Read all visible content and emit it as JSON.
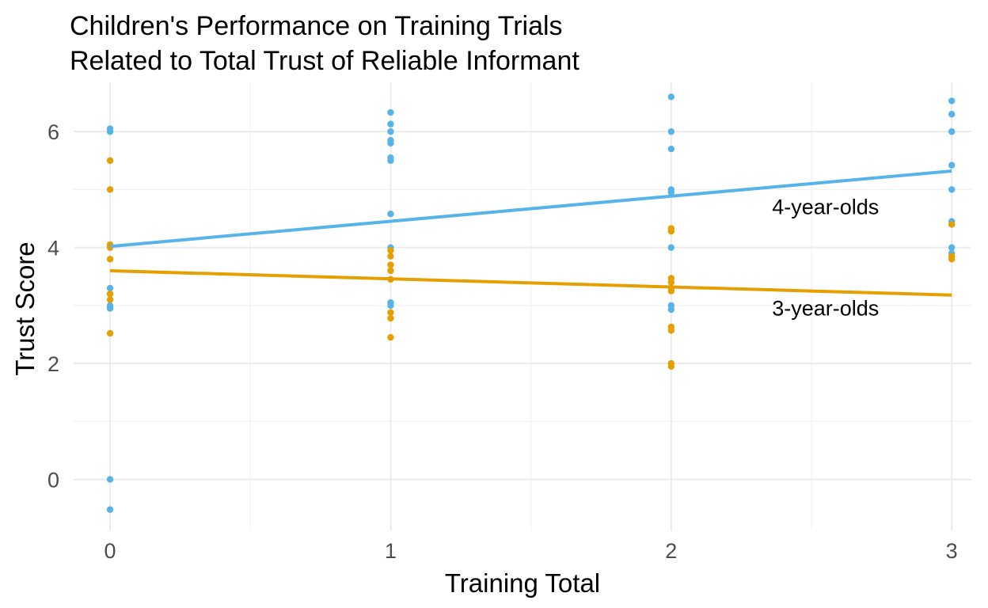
{
  "chart_data": {
    "type": "scatter",
    "title_lines": [
      "Children's Performance on Training Trials",
      "Related to Total Trust of Reliable Informant"
    ],
    "xlabel": "Training Total",
    "ylabel": "Trust Score",
    "xlim": [
      -0.13,
      3.07
    ],
    "ylim": [
      -0.88,
      6.85
    ],
    "x_ticks": [
      0,
      1,
      2,
      3
    ],
    "y_ticks": [
      0,
      2,
      4,
      6
    ],
    "grid": true,
    "series": [
      {
        "name": "4-year-olds",
        "color": "#56B4E9",
        "points": [
          [
            0,
            6.05
          ],
          [
            0,
            6.0
          ],
          [
            0,
            4.0
          ],
          [
            0,
            3.3
          ],
          [
            0,
            3.2
          ],
          [
            0,
            3.0
          ],
          [
            0,
            2.95
          ],
          [
            0,
            0.0
          ],
          [
            0,
            -0.52
          ],
          [
            1,
            6.33
          ],
          [
            1,
            6.13
          ],
          [
            1,
            6.0
          ],
          [
            1,
            5.85
          ],
          [
            1,
            5.8
          ],
          [
            1,
            5.55
          ],
          [
            1,
            5.5
          ],
          [
            1,
            4.58
          ],
          [
            1,
            4.0
          ],
          [
            1,
            3.05
          ],
          [
            1,
            3.0
          ],
          [
            2,
            6.6
          ],
          [
            2,
            6.0
          ],
          [
            2,
            5.7
          ],
          [
            2,
            5.0
          ],
          [
            2,
            4.95
          ],
          [
            2,
            4.0
          ],
          [
            2,
            3.0
          ],
          [
            2,
            2.93
          ],
          [
            3,
            6.53
          ],
          [
            3,
            6.3
          ],
          [
            3,
            6.0
          ],
          [
            3,
            5.42
          ],
          [
            3,
            5.0
          ],
          [
            3,
            4.45
          ],
          [
            3,
            4.4
          ],
          [
            3,
            4.0
          ],
          [
            3,
            3.9
          ],
          [
            3,
            3.85
          ]
        ],
        "fit": {
          "x": [
            0,
            3
          ],
          "y": [
            4.02,
            5.32
          ]
        },
        "label": {
          "text": "4-year-olds",
          "x": 2.55,
          "y": 4.7
        }
      },
      {
        "name": "3-year-olds",
        "color": "#E69F00",
        "points": [
          [
            0,
            5.5
          ],
          [
            0,
            5.0
          ],
          [
            0,
            4.05
          ],
          [
            0,
            4.0
          ],
          [
            0,
            3.8
          ],
          [
            0,
            3.2
          ],
          [
            0,
            3.1
          ],
          [
            0,
            2.52
          ],
          [
            1,
            3.95
          ],
          [
            1,
            3.85
          ],
          [
            1,
            3.7
          ],
          [
            1,
            3.6
          ],
          [
            1,
            3.45
          ],
          [
            1,
            2.88
          ],
          [
            1,
            2.78
          ],
          [
            1,
            2.45
          ],
          [
            2,
            4.33
          ],
          [
            2,
            4.28
          ],
          [
            2,
            3.47
          ],
          [
            2,
            3.4
          ],
          [
            2,
            3.3
          ],
          [
            2,
            3.25
          ],
          [
            2,
            2.63
          ],
          [
            2,
            2.57
          ],
          [
            2,
            2.0
          ],
          [
            2,
            1.95
          ],
          [
            3,
            4.4
          ],
          [
            3,
            3.85
          ],
          [
            3,
            3.8
          ]
        ],
        "fit": {
          "x": [
            0,
            3
          ],
          "y": [
            3.6,
            3.18
          ]
        },
        "label": {
          "text": "3-year-olds",
          "x": 2.55,
          "y": 2.95
        }
      }
    ]
  }
}
